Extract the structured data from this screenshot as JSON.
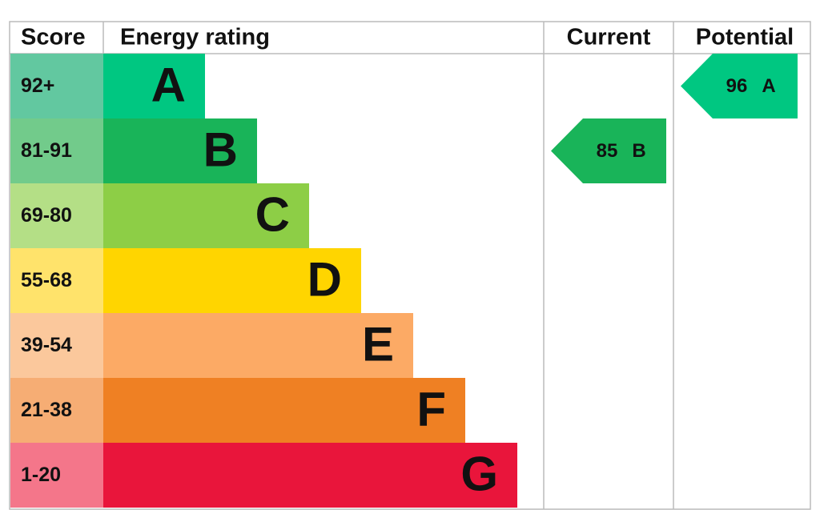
{
  "header": {
    "score": "Score",
    "energy_rating": "Energy rating",
    "current": "Current",
    "potential": "Potential"
  },
  "bands": [
    {
      "score": "92+",
      "rating": "A",
      "score_color": "#62c8a0",
      "color": "#00c781"
    },
    {
      "score": "81-91",
      "rating": "B",
      "score_color": "#72cb8b",
      "color": "#19b459"
    },
    {
      "score": "69-80",
      "rating": "C",
      "score_color": "#b4df86",
      "color": "#8dce46"
    },
    {
      "score": "55-68",
      "rating": "D",
      "score_color": "#ffe36b",
      "color": "#ffd500"
    },
    {
      "score": "39-54",
      "rating": "E",
      "score_color": "#fbc89c",
      "color": "#fcaa65"
    },
    {
      "score": "21-38",
      "rating": "F",
      "score_color": "#f6ad74",
      "color": "#ef8023"
    },
    {
      "score": "1-20",
      "rating": "G",
      "score_color": "#f4768a",
      "color": "#e9153b"
    }
  ],
  "current": {
    "score": 85,
    "rating": "B"
  },
  "potential": {
    "score": 96,
    "rating": "A"
  }
}
